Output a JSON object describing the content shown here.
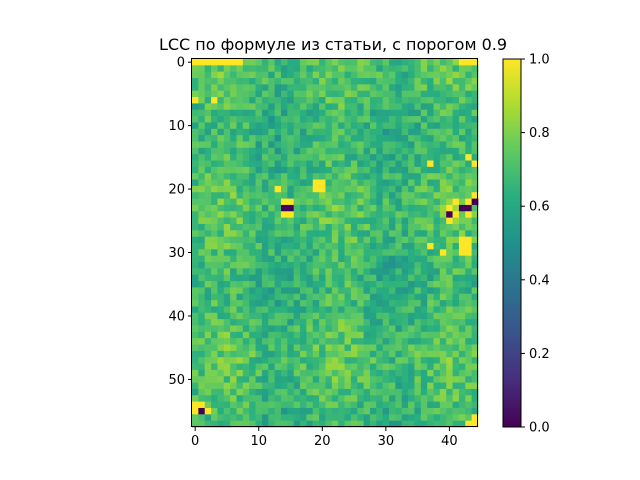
{
  "chart_data": {
    "type": "heatmap",
    "title": "LCC по формуле из статьи, с порогом 0.9",
    "xlabel": "",
    "ylabel": "",
    "ncols": 45,
    "nrows": 58,
    "x_ticks": [
      0,
      10,
      20,
      30,
      40
    ],
    "y_ticks": [
      0,
      10,
      20,
      30,
      40,
      50
    ],
    "x_tick_labels": [
      "0",
      "10",
      "20",
      "30",
      "40"
    ],
    "y_tick_labels": [
      "0",
      "10",
      "20",
      "30",
      "40",
      "50"
    ],
    "colormap": "viridis",
    "vmin": 0.0,
    "vmax": 1.0,
    "colorbar_ticks": [
      0.0,
      0.2,
      0.4,
      0.6,
      0.8,
      1.0
    ],
    "colorbar_tick_labels": [
      "0.0",
      "0.2",
      "0.4",
      "0.6",
      "0.8",
      "1.0"
    ],
    "background_level": 0.68,
    "value_range_typical": [
      0.55,
      0.85
    ],
    "bright_cells": [
      [
        0,
        0
      ],
      [
        1,
        0
      ],
      [
        2,
        0
      ],
      [
        3,
        0
      ],
      [
        4,
        0
      ],
      [
        5,
        0
      ],
      [
        6,
        0
      ],
      [
        7,
        0
      ],
      [
        42,
        0
      ],
      [
        43,
        0
      ],
      [
        44,
        0
      ],
      [
        19,
        19
      ],
      [
        20,
        19
      ],
      [
        19,
        20
      ],
      [
        20,
        20
      ],
      [
        13,
        20
      ],
      [
        14,
        22
      ],
      [
        15,
        22
      ],
      [
        14,
        24
      ],
      [
        15,
        24
      ],
      [
        44,
        21
      ],
      [
        43,
        22
      ],
      [
        44,
        22
      ],
      [
        41,
        22
      ],
      [
        40,
        23
      ],
      [
        43,
        24
      ],
      [
        41,
        24
      ],
      [
        40,
        25
      ],
      [
        42,
        28
      ],
      [
        43,
        28
      ],
      [
        42,
        29
      ],
      [
        43,
        29
      ],
      [
        42,
        30
      ],
      [
        43,
        30
      ],
      [
        39,
        30
      ],
      [
        37,
        29
      ],
      [
        0,
        54
      ],
      [
        1,
        54
      ],
      [
        0,
        55
      ],
      [
        2,
        55
      ],
      [
        44,
        56
      ],
      [
        43,
        57
      ],
      [
        44,
        57
      ],
      [
        0,
        6
      ],
      [
        3,
        6
      ],
      [
        37,
        16
      ],
      [
        43,
        15
      ],
      [
        44,
        16
      ]
    ],
    "dark_cells": [
      [
        14,
        23
      ],
      [
        15,
        23
      ],
      [
        44,
        22
      ],
      [
        42,
        23
      ],
      [
        43,
        23
      ],
      [
        40,
        24
      ],
      [
        1,
        55
      ]
    ]
  }
}
